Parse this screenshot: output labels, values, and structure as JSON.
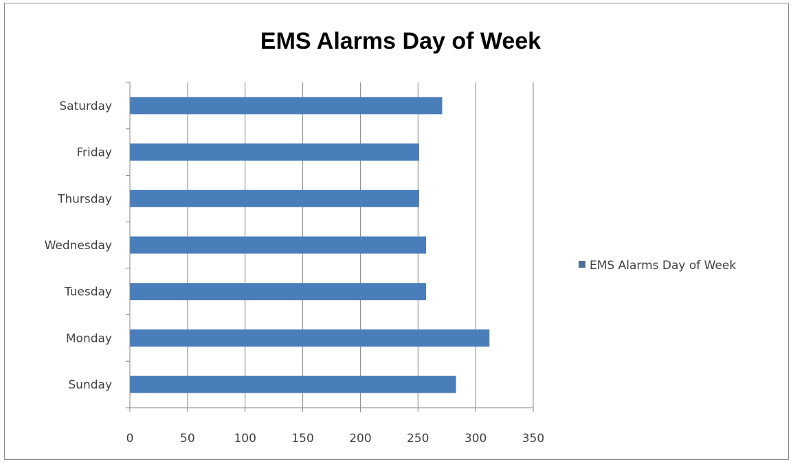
{
  "chart_data": {
    "type": "bar",
    "orientation": "horizontal",
    "title": "EMS Alarms Day of Week",
    "xlabel": "",
    "ylabel": "",
    "categories": [
      "Sunday",
      "Monday",
      "Tuesday",
      "Wednesday",
      "Thursday",
      "Friday",
      "Saturday"
    ],
    "series": [
      {
        "name": "EMS Alarms Day of Week",
        "values": [
          283,
          312,
          257,
          257,
          251,
          251,
          271
        ],
        "color": "#4a7ebb"
      }
    ],
    "xlim": [
      0,
      350
    ],
    "xticks": [
      "0",
      "50",
      "100",
      "150",
      "200",
      "250",
      "300",
      "350"
    ],
    "grid": "vertical",
    "legend_position": "right"
  }
}
